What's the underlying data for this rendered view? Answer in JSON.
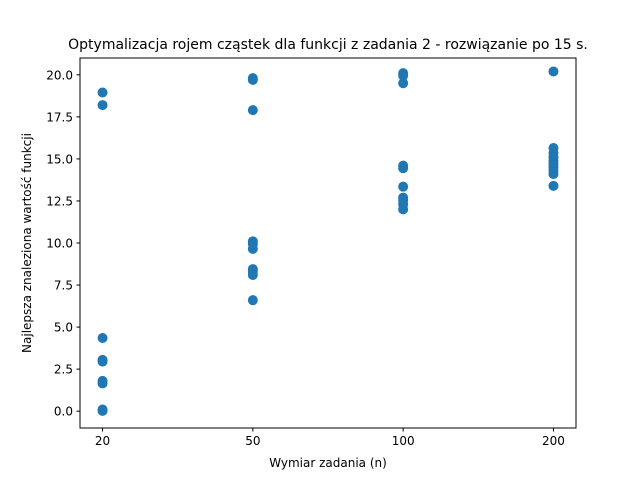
{
  "chart_data": {
    "type": "scatter",
    "title": "Optymalizacja rojem cząstek dla funkcji z zadania 2 - rozwiązanie po 15 s.",
    "xlabel": "Wymiar zadania (n)",
    "ylabel": "Najlepsza znaleziona wartość funkcji",
    "x_axis": "categorical",
    "categories": [
      "20",
      "50",
      "100",
      "200"
    ],
    "ylim": [
      -1.0,
      21.0
    ],
    "yticks": [
      0.0,
      2.5,
      5.0,
      7.5,
      10.0,
      12.5,
      15.0,
      17.5,
      20.0
    ],
    "ytick_labels": [
      "0.0",
      "2.5",
      "5.0",
      "7.5",
      "10.0",
      "12.5",
      "15.0",
      "17.5",
      "20.0"
    ],
    "grid": false,
    "marker_color": "#1f77b4",
    "points": [
      {
        "x": "20",
        "y": 18.95
      },
      {
        "x": "20",
        "y": 18.2
      },
      {
        "x": "20",
        "y": 4.35
      },
      {
        "x": "20",
        "y": 3.05
      },
      {
        "x": "20",
        "y": 2.95
      },
      {
        "x": "20",
        "y": 1.8
      },
      {
        "x": "20",
        "y": 1.65
      },
      {
        "x": "20",
        "y": 0.1
      },
      {
        "x": "20",
        "y": 0.02
      },
      {
        "x": "50",
        "y": 19.8
      },
      {
        "x": "50",
        "y": 19.7
      },
      {
        "x": "50",
        "y": 17.9
      },
      {
        "x": "50",
        "y": 10.1
      },
      {
        "x": "50",
        "y": 9.95
      },
      {
        "x": "50",
        "y": 9.65
      },
      {
        "x": "50",
        "y": 8.45
      },
      {
        "x": "50",
        "y": 8.3
      },
      {
        "x": "50",
        "y": 8.1
      },
      {
        "x": "50",
        "y": 6.6
      },
      {
        "x": "100",
        "y": 20.1
      },
      {
        "x": "100",
        "y": 19.95
      },
      {
        "x": "100",
        "y": 19.5
      },
      {
        "x": "100",
        "y": 14.6
      },
      {
        "x": "100",
        "y": 14.45
      },
      {
        "x": "100",
        "y": 13.35
      },
      {
        "x": "100",
        "y": 12.7
      },
      {
        "x": "100",
        "y": 12.55
      },
      {
        "x": "100",
        "y": 12.3
      },
      {
        "x": "100",
        "y": 12.0
      },
      {
        "x": "200",
        "y": 20.2
      },
      {
        "x": "200",
        "y": 15.65
      },
      {
        "x": "200",
        "y": 15.35
      },
      {
        "x": "200",
        "y": 15.1
      },
      {
        "x": "200",
        "y": 14.9
      },
      {
        "x": "200",
        "y": 14.7
      },
      {
        "x": "200",
        "y": 14.5
      },
      {
        "x": "200",
        "y": 14.3
      },
      {
        "x": "200",
        "y": 14.1
      },
      {
        "x": "200",
        "y": 13.4
      }
    ]
  }
}
